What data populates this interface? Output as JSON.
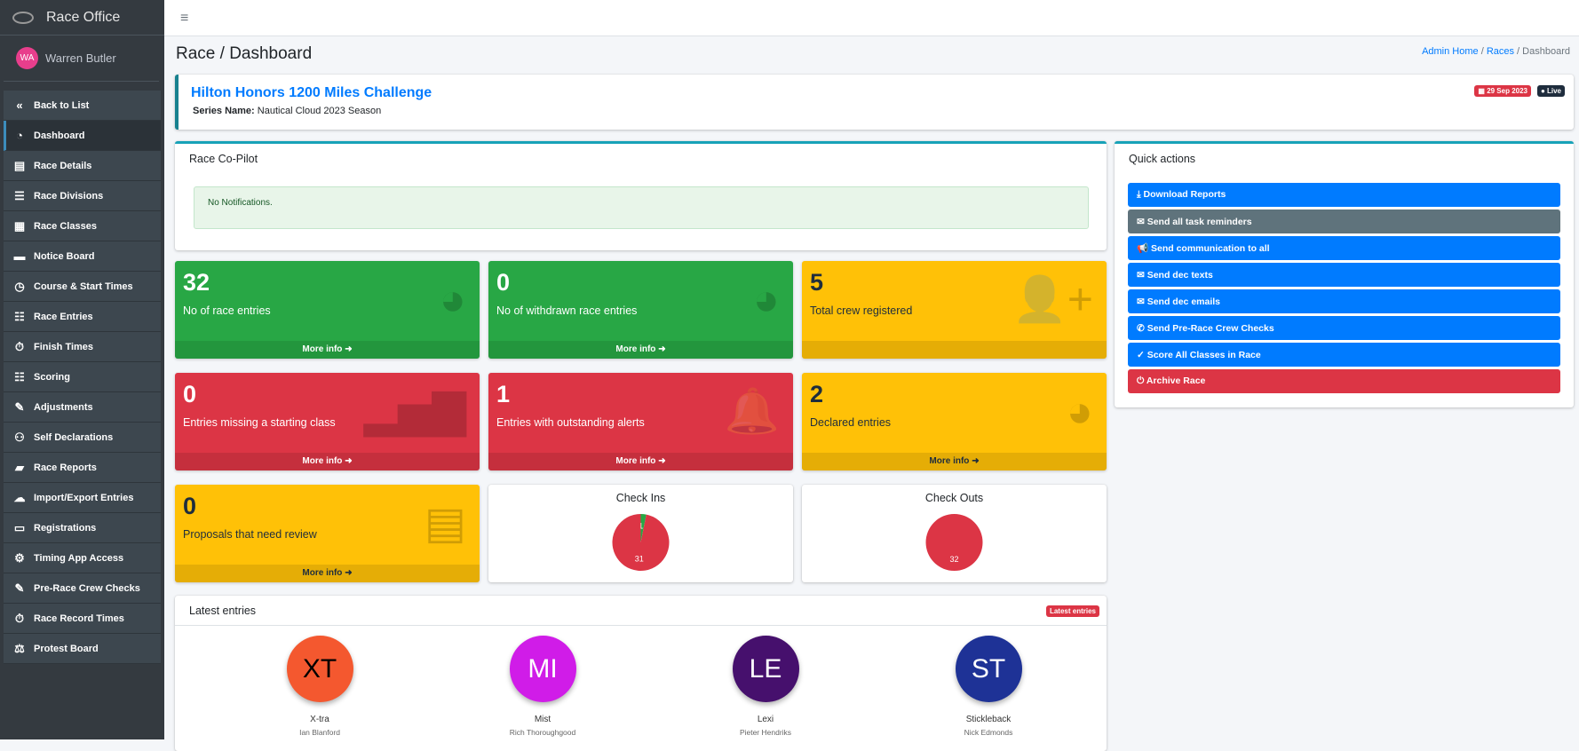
{
  "sidebar": {
    "brand": "Race Office",
    "user": {
      "initials": "WA",
      "name": "Warren Butler"
    },
    "items": [
      {
        "label": "Back to List",
        "icon": "«"
      },
      {
        "label": "Dashboard",
        "icon": "◔"
      },
      {
        "label": "Race Details",
        "icon": "▤"
      },
      {
        "label": "Race Divisions",
        "icon": "☰"
      },
      {
        "label": "Race Classes",
        "icon": "▦"
      },
      {
        "label": "Notice Board",
        "icon": "▬"
      },
      {
        "label": "Course & Start Times",
        "icon": "◷"
      },
      {
        "label": "Race Entries",
        "icon": "☷"
      },
      {
        "label": "Finish Times",
        "icon": "⏱"
      },
      {
        "label": "Scoring",
        "icon": "☷"
      },
      {
        "label": "Adjustments",
        "icon": "✎"
      },
      {
        "label": "Self Declarations",
        "icon": "⚇"
      },
      {
        "label": "Race Reports",
        "icon": "▰"
      },
      {
        "label": "Import/Export Entries",
        "icon": "☁"
      },
      {
        "label": "Registrations",
        "icon": "▭"
      },
      {
        "label": "Timing App Access",
        "icon": "⚙"
      },
      {
        "label": "Pre-Race Crew Checks",
        "icon": "✎"
      },
      {
        "label": "Race Record Times",
        "icon": "⏱"
      },
      {
        "label": "Protest Board",
        "icon": "⚖"
      }
    ]
  },
  "header": {
    "menu_icon": "≡",
    "title": "Race / Dashboard",
    "breadcrumb": [
      "Admin Home",
      "Races",
      "Dashboard"
    ]
  },
  "race": {
    "name": "Hilton Honors 1200 Miles Challenge",
    "series_label": "Series Name:",
    "series": "Nautical Cloud 2023 Season",
    "date": "▦ 29 Sep 2023",
    "status": "● Live",
    "date_color": "#dc3545",
    "status_color": "#1f2d3d"
  },
  "copilot": {
    "title": "Race Co-Pilot",
    "message": "No Notifications."
  },
  "quick_actions": {
    "title": "Quick actions",
    "buttons": [
      {
        "label": "⤓ Download Reports",
        "color": "#007bff"
      },
      {
        "label": "✉ Send all task reminders",
        "color": "#5f737c"
      },
      {
        "label": "📢 Send communication to all",
        "color": "#007bff"
      },
      {
        "label": "✉ Send dec texts",
        "color": "#007bff"
      },
      {
        "label": "✉ Send dec emails",
        "color": "#007bff"
      },
      {
        "label": "✆ Send Pre-Race Crew Checks",
        "color": "#007bff"
      },
      {
        "label": "✓ Score All Classes in Race",
        "color": "#007bff"
      },
      {
        "label": "⏻ Archive Race",
        "color": "#dc3545"
      }
    ]
  },
  "stats": [
    {
      "value": "32",
      "label": "No of race entries",
      "more": "More info ➜",
      "icon": "◕"
    },
    {
      "value": "0",
      "label": "No of withdrawn race entries",
      "more": "More info ➜",
      "icon": "◕"
    },
    {
      "value": "5",
      "label": "Total crew registered",
      "more": "",
      "icon": "👤+"
    },
    {
      "value": "0",
      "label": "Entries missing a starting class",
      "more": "More info ➜",
      "icon": "▂▅▇"
    },
    {
      "value": "1",
      "label": "Entries with outstanding alerts",
      "more": "More info ➜",
      "icon": "🔔"
    },
    {
      "value": "2",
      "label": "Declared entries",
      "more": "More info ➜",
      "icon": "◕"
    },
    {
      "value": "0",
      "label": "Proposals that need review",
      "more": "More info ➜",
      "icon": "▤"
    }
  ],
  "chart_data": [
    {
      "type": "pie",
      "title": "Check Ins",
      "values": [
        1,
        31
      ],
      "colors": [
        "#28a745",
        "#dc3545"
      ]
    },
    {
      "type": "pie",
      "title": "Check Outs",
      "values": [
        32
      ],
      "colors": [
        "#dc3545"
      ]
    }
  ],
  "latest": {
    "title": "Latest entries",
    "badge": "Latest entries",
    "entries": [
      {
        "initials": "XT",
        "name": "X-tra",
        "owner": "Ian Blanford",
        "color": "#f4582f",
        "text": "#000"
      },
      {
        "initials": "MI",
        "name": "Mist",
        "owner": "Rich Thoroughgood",
        "color": "#d01ce8",
        "text": "#fff"
      },
      {
        "initials": "LE",
        "name": "Lexi",
        "owner": "Pieter Hendriks",
        "color": "#46106d",
        "text": "#fff"
      },
      {
        "initials": "ST",
        "name": "Stickleback",
        "owner": "Nick Edmonds",
        "color": "#1e3296",
        "text": "#fff"
      }
    ]
  }
}
